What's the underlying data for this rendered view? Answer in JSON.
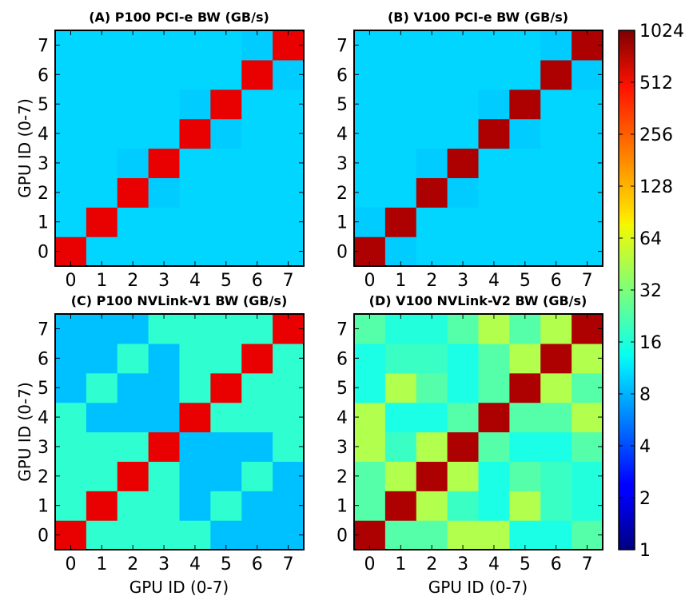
{
  "chart_data": {
    "type": "heatmap",
    "scale": "log2",
    "colorbar": {
      "min": 1,
      "max": 1024,
      "ticks": [
        "1",
        "2",
        "4",
        "8",
        "16",
        "32",
        "64",
        "128",
        "256",
        "512",
        "1024"
      ]
    },
    "panels": [
      {
        "title": "(A) P100 PCI-e BW (GB/s)",
        "xlabel": "",
        "ylabel": "GPU ID (0-7)",
        "xticks": [
          "0",
          "1",
          "2",
          "3",
          "4",
          "5",
          "6",
          "7"
        ],
        "yticks": [
          "0",
          "1",
          "2",
          "3",
          "4",
          "5",
          "6",
          "7"
        ],
        "matrix": [
          [
            500,
            10.2,
            10.2,
            10.2,
            10.2,
            10.2,
            10.2,
            10.2
          ],
          [
            10.2,
            500,
            10.2,
            10.2,
            10.2,
            10.2,
            10.2,
            10.2
          ],
          [
            10.2,
            10.2,
            500,
            9.5,
            10.2,
            10.2,
            10.2,
            10.2
          ],
          [
            10.2,
            10.2,
            9.5,
            500,
            10.2,
            10.2,
            10.2,
            10.2
          ],
          [
            10.2,
            10.2,
            10.2,
            10.2,
            500,
            9.5,
            10.2,
            10.2
          ],
          [
            10.2,
            10.2,
            10.2,
            10.2,
            9.5,
            500,
            10.2,
            10.2
          ],
          [
            10.2,
            10.2,
            10.2,
            10.2,
            10.2,
            10.2,
            500,
            9.5
          ],
          [
            10.2,
            10.2,
            10.2,
            10.2,
            10.2,
            10.2,
            9.5,
            500
          ]
        ]
      },
      {
        "title": "(B) V100 PCI-e BW (GB/s)",
        "xlabel": "",
        "ylabel": "",
        "xticks": [
          "0",
          "1",
          "2",
          "3",
          "4",
          "5",
          "6",
          "7"
        ],
        "yticks": [
          "0",
          "1",
          "2",
          "3",
          "4",
          "5",
          "6",
          "7"
        ],
        "matrix": [
          [
            750,
            9.5,
            10.2,
            10.2,
            10.2,
            10.2,
            10.2,
            10.2
          ],
          [
            9.5,
            750,
            10.2,
            10.2,
            10.2,
            10.2,
            10.2,
            10.2
          ],
          [
            10.2,
            10.2,
            750,
            9.5,
            10.2,
            10.2,
            10.2,
            10.2
          ],
          [
            10.2,
            10.2,
            9.5,
            750,
            10.2,
            10.2,
            10.2,
            10.2
          ],
          [
            10.2,
            10.2,
            10.2,
            10.2,
            750,
            9.5,
            10.2,
            10.2
          ],
          [
            10.2,
            10.2,
            10.2,
            10.2,
            9.5,
            750,
            10.2,
            10.2
          ],
          [
            10.2,
            10.2,
            10.2,
            10.2,
            10.2,
            10.2,
            750,
            9.5
          ],
          [
            10.2,
            10.2,
            10.2,
            10.2,
            10.2,
            10.2,
            9.5,
            750
          ]
        ]
      },
      {
        "title": "(C) P100 NVLink-V1 BW (GB/s)",
        "xlabel": "GPU ID (0-7)",
        "ylabel": "GPU ID (0-7)",
        "xticks": [
          "0",
          "1",
          "2",
          "3",
          "4",
          "5",
          "6",
          "7"
        ],
        "yticks": [
          "0",
          "1",
          "2",
          "3",
          "4",
          "5",
          "6",
          "7"
        ],
        "matrix": [
          [
            500,
            18.5,
            18.5,
            18.5,
            18.5,
            8.8,
            8.8,
            8.8
          ],
          [
            18.5,
            500,
            18.5,
            18.5,
            8.8,
            18.5,
            8.8,
            8.8
          ],
          [
            18.5,
            18.5,
            500,
            18.5,
            8.8,
            8.8,
            18.5,
            8.8
          ],
          [
            18.5,
            18.5,
            18.5,
            500,
            8.8,
            8.8,
            8.8,
            18.5
          ],
          [
            18.5,
            8.8,
            8.8,
            8.8,
            500,
            18.5,
            18.5,
            18.5
          ],
          [
            8.8,
            18.5,
            8.8,
            8.8,
            18.5,
            500,
            18.5,
            18.5
          ],
          [
            8.8,
            8.8,
            18.5,
            8.8,
            18.5,
            18.5,
            500,
            18.5
          ],
          [
            8.8,
            8.8,
            8.8,
            18.5,
            18.5,
            18.5,
            18.5,
            500
          ]
        ]
      },
      {
        "title": "(D) V100 NVLink-V2 BW (GB/s)",
        "xlabel": "GPU ID (0-7)",
        "ylabel": "",
        "xticks": [
          "0",
          "1",
          "2",
          "3",
          "4",
          "5",
          "6",
          "7"
        ],
        "yticks": [
          "0",
          "1",
          "2",
          "3",
          "4",
          "5",
          "6",
          "7"
        ],
        "matrix": [
          [
            750,
            24,
            24,
            45,
            45,
            16,
            16,
            24
          ],
          [
            24,
            750,
            45,
            20,
            16,
            45,
            20,
            17
          ],
          [
            24,
            45,
            750,
            45,
            16,
            24,
            20,
            17
          ],
          [
            45,
            20,
            45,
            750,
            24,
            16,
            16,
            24
          ],
          [
            45,
            16,
            16,
            24,
            750,
            24,
            24,
            45
          ],
          [
            16,
            45,
            24,
            16,
            24,
            750,
            45,
            24
          ],
          [
            16,
            20,
            20,
            16,
            24,
            45,
            750,
            45
          ],
          [
            24,
            17,
            17,
            24,
            45,
            24,
            45,
            750
          ]
        ]
      }
    ]
  }
}
